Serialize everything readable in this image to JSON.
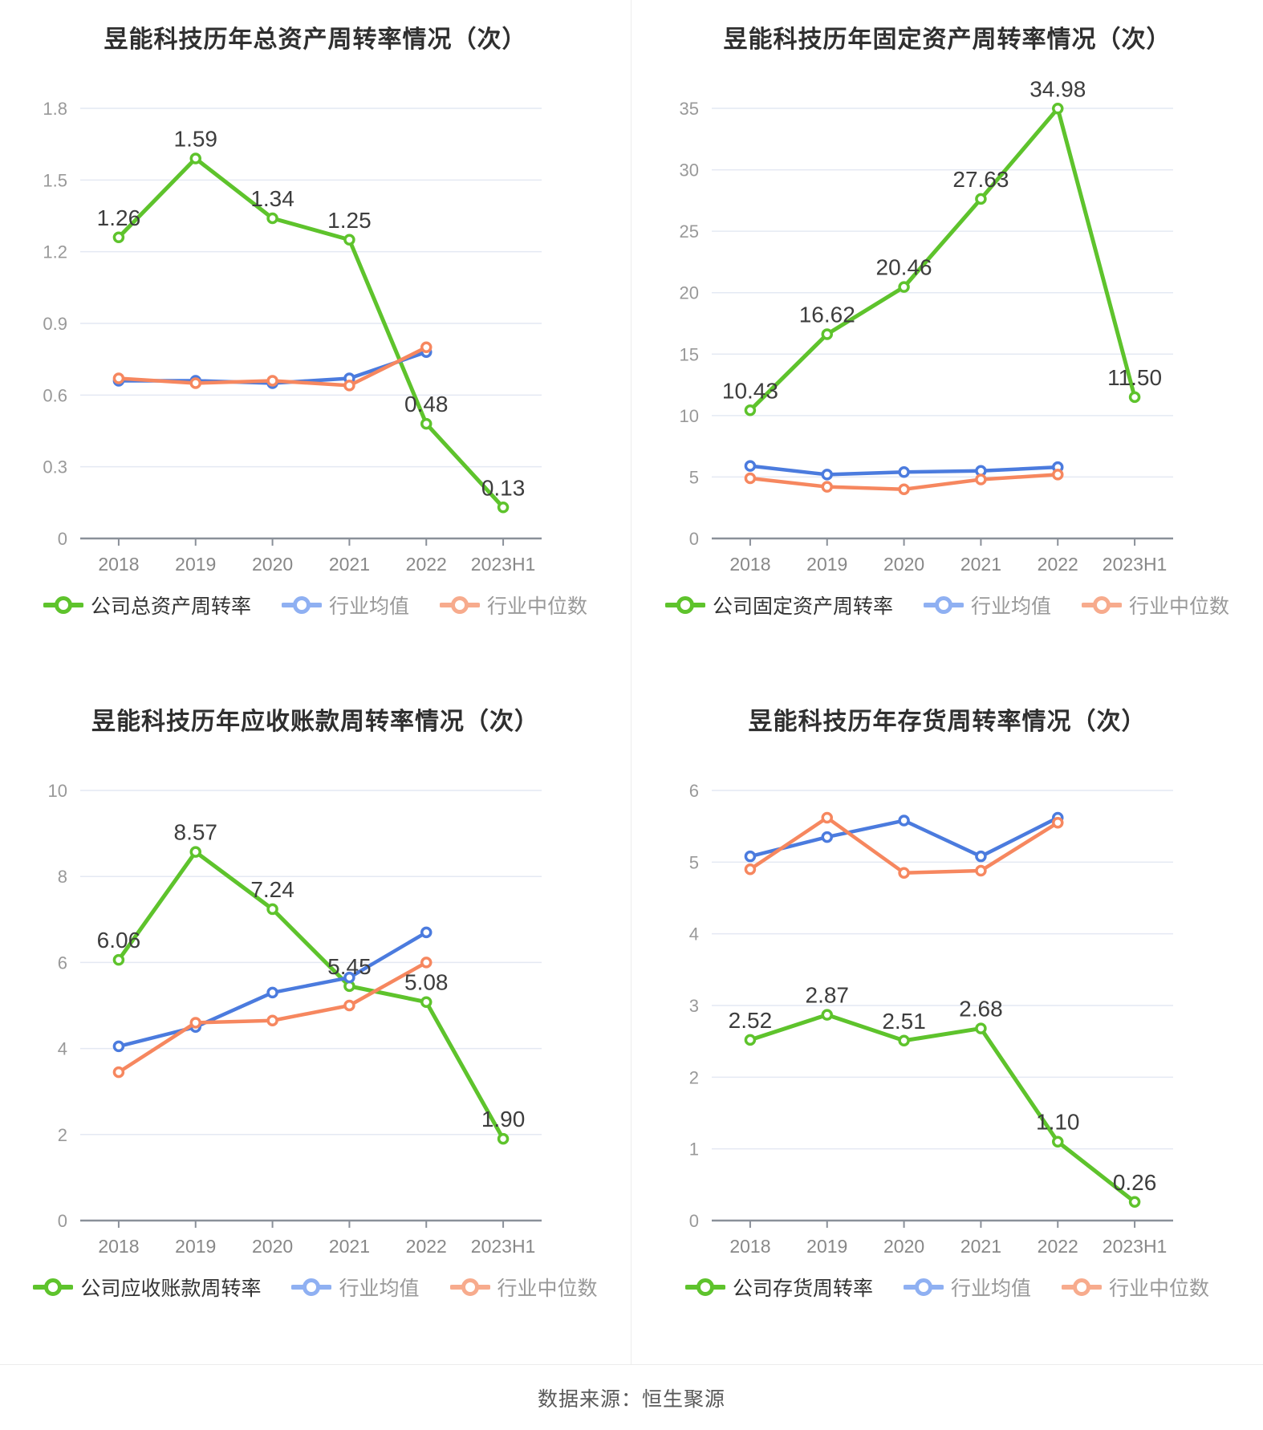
{
  "footer": {
    "source_label": "数据来源：恒生聚源"
  },
  "colors": {
    "company_green": "#5EC32C",
    "industry_avg_blue": "#4B7BDE",
    "industry_median_orange": "#F6875F",
    "legend_blue_light": "#8FB0F2",
    "legend_orange_light": "#F7AB8D",
    "grid_line": "#E4E9F3",
    "axis_line": "#8A9099",
    "y_tick_label": "#999999",
    "x_tick_label": "#888888",
    "data_label": "#3D3D3D",
    "legend_label_dark": "#333333",
    "legend_label_gray": "#999999"
  },
  "chart_data": [
    {
      "type": "line",
      "title": "昱能科技历年总资产周转率情况（次）",
      "categories": [
        "2018",
        "2019",
        "2020",
        "2021",
        "2022",
        "2023H1"
      ],
      "y_ticks": [
        0,
        0.3,
        0.6,
        0.9,
        1.2,
        1.5,
        1.8
      ],
      "ylim": [
        0,
        1.8
      ],
      "grid": true,
      "legend_position": "bottom",
      "series": [
        {
          "name": "公司总资产周转率",
          "role": "company",
          "values": [
            1.26,
            1.59,
            1.34,
            1.25,
            0.48,
            0.13
          ],
          "data_labels": [
            "1.26",
            "1.59",
            "1.34",
            "1.25",
            "0.48",
            "0.13"
          ]
        },
        {
          "name": "行业均值",
          "role": "industry-average",
          "values": [
            0.66,
            0.66,
            0.65,
            0.67,
            0.78,
            null
          ]
        },
        {
          "name": "行业中位数",
          "role": "industry-median",
          "values": [
            0.67,
            0.65,
            0.66,
            0.64,
            0.8,
            null
          ]
        }
      ]
    },
    {
      "type": "line",
      "title": "昱能科技历年固定资产周转率情况（次）",
      "categories": [
        "2018",
        "2019",
        "2020",
        "2021",
        "2022",
        "2023H1"
      ],
      "y_ticks": [
        0,
        5,
        10,
        15,
        20,
        25,
        30,
        35
      ],
      "ylim": [
        0,
        35
      ],
      "grid": true,
      "legend_position": "bottom",
      "series": [
        {
          "name": "公司固定资产周转率",
          "role": "company",
          "values": [
            10.43,
            16.62,
            20.46,
            27.63,
            34.98,
            11.5
          ],
          "data_labels": [
            "10.43",
            "16.62",
            "20.46",
            "27.63",
            "34.98",
            "11.50"
          ]
        },
        {
          "name": "行业均值",
          "role": "industry-average",
          "values": [
            5.9,
            5.2,
            5.4,
            5.5,
            5.8,
            null
          ]
        },
        {
          "name": "行业中位数",
          "role": "industry-median",
          "values": [
            4.9,
            4.2,
            4.0,
            4.8,
            5.2,
            null
          ]
        }
      ]
    },
    {
      "type": "line",
      "title": "昱能科技历年应收账款周转率情况（次）",
      "categories": [
        "2018",
        "2019",
        "2020",
        "2021",
        "2022",
        "2023H1"
      ],
      "y_ticks": [
        0,
        2,
        4,
        6,
        8,
        10
      ],
      "ylim": [
        0,
        10
      ],
      "grid": true,
      "legend_position": "bottom",
      "series": [
        {
          "name": "公司应收账款周转率",
          "role": "company",
          "values": [
            6.06,
            8.57,
            7.24,
            5.45,
            5.08,
            1.9
          ],
          "data_labels": [
            "6.06",
            "8.57",
            "7.24",
            "5.45",
            "5.08",
            "1.90"
          ]
        },
        {
          "name": "行业均值",
          "role": "industry-average",
          "values": [
            4.05,
            4.5,
            5.3,
            5.65,
            6.7,
            null
          ]
        },
        {
          "name": "行业中位数",
          "role": "industry-median",
          "values": [
            3.45,
            4.6,
            4.65,
            5.0,
            6.0,
            null
          ]
        }
      ]
    },
    {
      "type": "line",
      "title": "昱能科技历年存货周转率情况（次）",
      "categories": [
        "2018",
        "2019",
        "2020",
        "2021",
        "2022",
        "2023H1"
      ],
      "y_ticks": [
        0,
        1,
        2,
        3,
        4,
        5,
        6
      ],
      "ylim": [
        0,
        6
      ],
      "grid": true,
      "legend_position": "bottom",
      "series": [
        {
          "name": "公司存货周转率",
          "role": "company",
          "values": [
            2.52,
            2.87,
            2.51,
            2.68,
            1.1,
            0.26
          ],
          "data_labels": [
            "2.52",
            "2.87",
            "2.51",
            "2.68",
            "1.10",
            "0.26"
          ]
        },
        {
          "name": "行业均值",
          "role": "industry-average",
          "values": [
            5.08,
            5.35,
            5.58,
            5.08,
            5.62,
            null
          ]
        },
        {
          "name": "行业中位数",
          "role": "industry-median",
          "values": [
            4.9,
            5.62,
            4.85,
            4.88,
            5.55,
            null
          ]
        }
      ]
    }
  ]
}
